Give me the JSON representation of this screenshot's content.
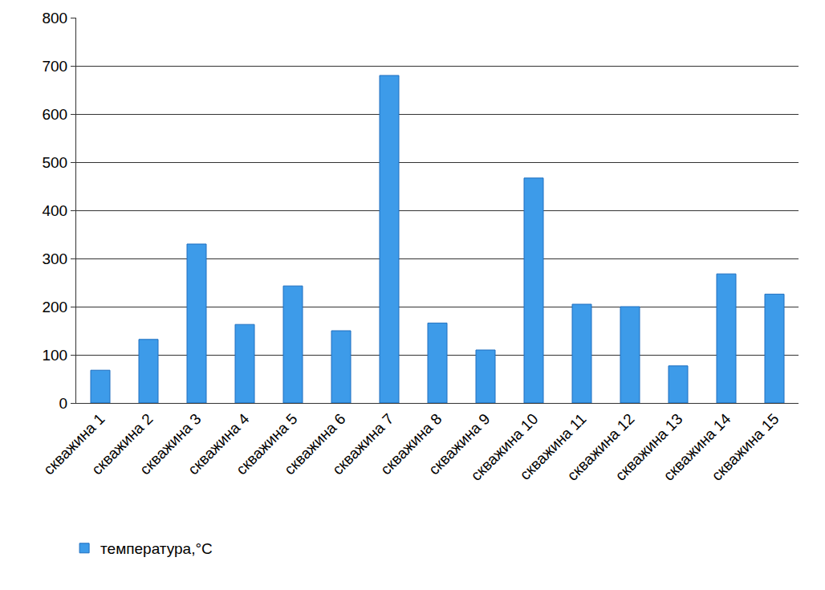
{
  "chart_data": {
    "type": "bar",
    "categories": [
      "скважина 1",
      "скважина 2",
      "скважина 3",
      "скважина 4",
      "скважина 5",
      "скважина 6",
      "скважина 7",
      "скважина 8",
      "скважина 9",
      "скважина 10",
      "скважина 11",
      "скважина 12",
      "скважина 13",
      "скважина 14",
      "скважина 15"
    ],
    "series": [
      {
        "name": "температура,°C",
        "color": "#3d9be9",
        "values": [
          68,
          132,
          330,
          163,
          243,
          150,
          680,
          166,
          110,
          467,
          205,
          200,
          77,
          268,
          226
        ]
      }
    ],
    "ylim": [
      0,
      800
    ],
    "yticks": [
      0,
      100,
      200,
      300,
      400,
      500,
      600,
      700,
      800
    ],
    "grid": true,
    "legend": "bottom"
  }
}
